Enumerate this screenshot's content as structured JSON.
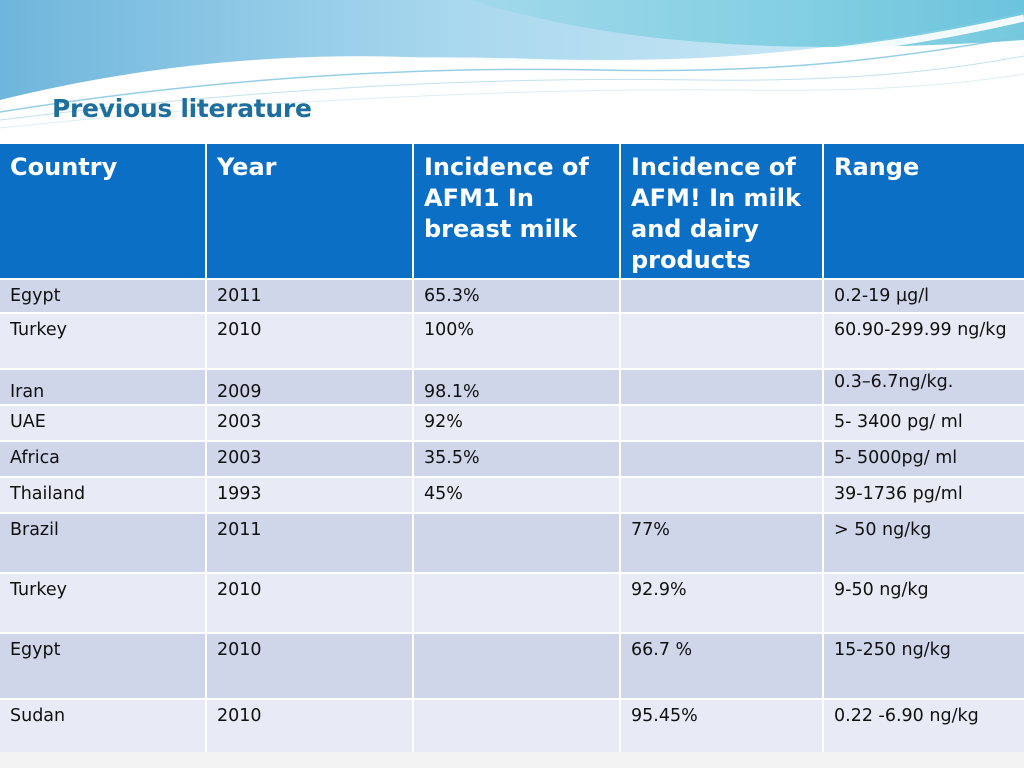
{
  "slide": {
    "title": "Previous literature"
  },
  "table": {
    "headers": [
      "Country",
      "Year",
      "Incidence of AFM1 In breast milk",
      "Incidence of AFM! In milk and dairy products",
      "Range"
    ],
    "rows": [
      [
        "Egypt",
        "2011",
        "65.3%",
        "",
        "0.2-19 µg/l"
      ],
      [
        "Turkey",
        "2010",
        "100%",
        "",
        "60.90-299.99 ng/kg"
      ],
      [
        "Iran",
        "2009",
        "98.1%",
        "",
        "0.3–6.7ng/kg."
      ],
      [
        "UAE",
        "2003",
        "92%",
        "",
        "5- 3400 pg/ ml"
      ],
      [
        "Africa",
        "2003",
        "35.5%",
        "",
        "5- 5000pg/ ml"
      ],
      [
        "Thailand",
        "1993",
        "45%",
        "",
        "39-1736 pg/ml"
      ],
      [
        "Brazil",
        "2011",
        "",
        "77%",
        "> 50 ng/kg"
      ],
      [
        "Turkey",
        "2010",
        "",
        "92.9%",
        "9-50 ng/kg"
      ],
      [
        "Egypt",
        "2010",
        "",
        "66.7 %",
        "15-250 ng/kg"
      ],
      [
        "Sudan",
        "2010",
        "",
        "95.45%",
        "0.22 -6.90 ng/kg"
      ]
    ]
  },
  "colors": {
    "title": "#1f6f9c",
    "header_bg": "#0a6fc5",
    "header_text": "#ffffff",
    "row_dark": "#cfd6ea",
    "row_light": "#e8ebf5"
  }
}
